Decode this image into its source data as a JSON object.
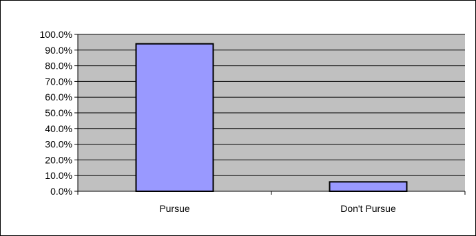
{
  "chart_data": {
    "type": "bar",
    "categories": [
      "Pursue",
      "Don't Pursue"
    ],
    "values": [
      94.0,
      6.0
    ],
    "ylim": [
      0,
      100
    ],
    "y_ticks": [
      0,
      10,
      20,
      30,
      40,
      50,
      60,
      70,
      80,
      90,
      100
    ],
    "y_tick_labels": [
      "0.0%",
      "10.0%",
      "20.0%",
      "30.0%",
      "40.0%",
      "50.0%",
      "60.0%",
      "70.0%",
      "80.0%",
      "90.0%",
      "100.0%"
    ],
    "title": "",
    "xlabel": "",
    "ylabel": "",
    "grid": true,
    "legend": "none",
    "colors": {
      "plot_background": "#c0c0c0",
      "bar_fill": "#9999ff",
      "bar_stroke": "#000000",
      "gridline": "#000000"
    }
  }
}
